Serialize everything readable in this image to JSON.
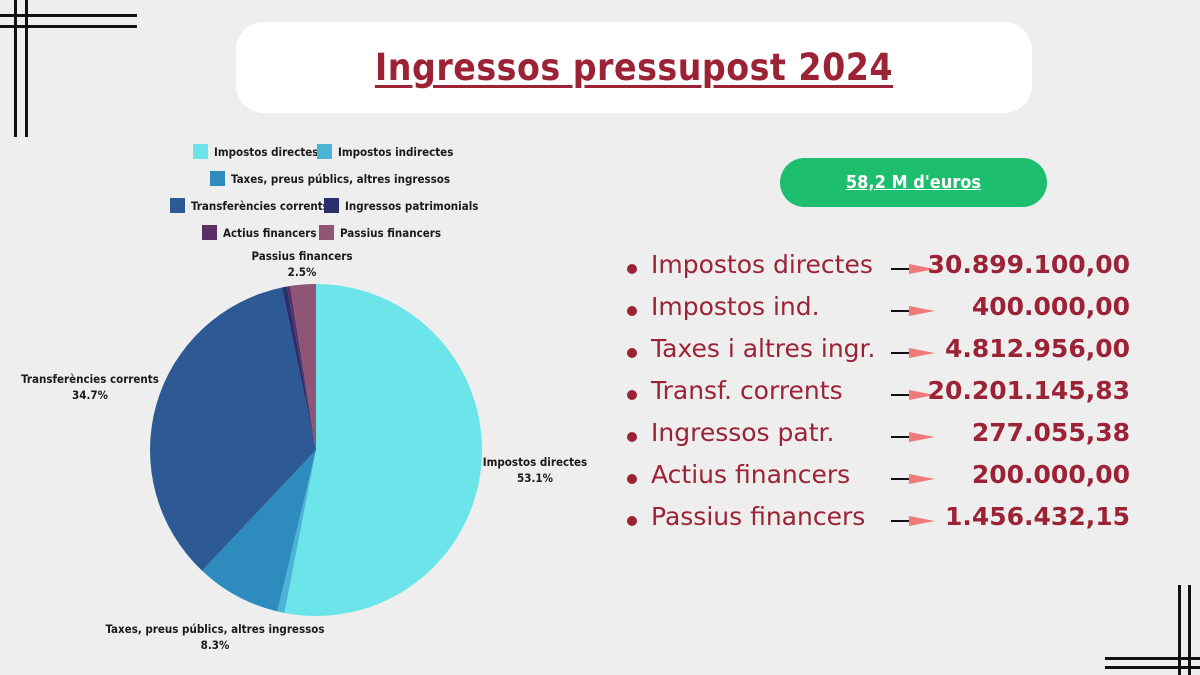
{
  "title": "Ingressos pressupost 2024",
  "total": "58,2 M d'euros",
  "colors": {
    "accent": "#9b2335",
    "pill": "#1dbf6e",
    "arrow": "#f07a7a"
  },
  "chart_data": {
    "type": "pie",
    "legend_position": "top",
    "slices": [
      {
        "name": "Impostos directes",
        "value": 53.1,
        "label": "53.1%",
        "color": "#6ce5ea"
      },
      {
        "name": "Impostos indirectes",
        "value": 0.7,
        "label": "",
        "color": "#4ab3d6"
      },
      {
        "name": "Taxes, preus públics, altres ingressos",
        "value": 8.3,
        "label": "8.3%",
        "color": "#2e8bbd"
      },
      {
        "name": "Transferències corrents",
        "value": 34.7,
        "label": "34.7%",
        "color": "#2d5a94"
      },
      {
        "name": "Ingressos patrimonials",
        "value": 0.5,
        "label": "",
        "color": "#2a2f6b"
      },
      {
        "name": "Actius financers",
        "value": 0.3,
        "label": "",
        "color": "#5a2e66"
      },
      {
        "name": "Passius financers",
        "value": 2.5,
        "label": "2.5%",
        "color": "#8e5577"
      }
    ]
  },
  "items": [
    {
      "label": "Impostos directes",
      "value": "30.899.100,00"
    },
    {
      "label": "Impostos ind.",
      "value": "400.000,00"
    },
    {
      "label": "Taxes i altres ingr.",
      "value": "4.812.956,00"
    },
    {
      "label": "Transf. corrents",
      "value": "20.201.145,83"
    },
    {
      "label": "Ingressos patr.",
      "value": "277.055,38"
    },
    {
      "label": "Actius financers",
      "value": "200.000,00"
    },
    {
      "label": "Passius financers",
      "value": "1.456.432,15"
    }
  ]
}
